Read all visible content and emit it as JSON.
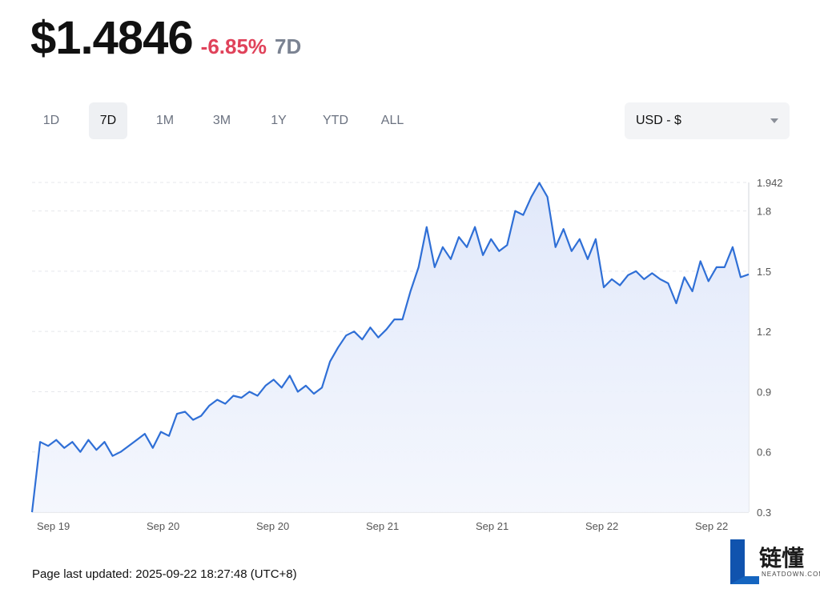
{
  "header": {
    "price": "$1.4846",
    "change": "-6.85%",
    "period": "7D"
  },
  "range_tabs": [
    {
      "label": "1D",
      "active": false
    },
    {
      "label": "7D",
      "active": true
    },
    {
      "label": "1M",
      "active": false
    },
    {
      "label": "3M",
      "active": false
    },
    {
      "label": "1Y",
      "active": false
    },
    {
      "label": "YTD",
      "active": false
    },
    {
      "label": "ALL",
      "active": false
    }
  ],
  "currency": {
    "selected": "USD - $"
  },
  "footer": {
    "updated": "Page last updated: 2025-09-22 18:27:48 (UTC+8)"
  },
  "watermark_logo": {
    "text": "链懂",
    "sub": "NEATDOWN.COM"
  },
  "colors": {
    "line": "#2f6fd6",
    "fill": "#e9effc",
    "negative": "#e0425a"
  },
  "chart_data": {
    "type": "area",
    "title": "",
    "xlabel": "",
    "ylabel": "",
    "ylim": [
      0.3,
      1.942
    ],
    "y_ticks": [
      "1.942",
      "1.8",
      "1.5",
      "1.2",
      "0.9",
      "0.6",
      "0.3"
    ],
    "y_tick_values": [
      1.942,
      1.8,
      1.5,
      1.2,
      0.9,
      0.6,
      0.3
    ],
    "x_tick_labels": [
      "Sep 19",
      "Sep 20",
      "Sep 20",
      "Sep 21",
      "Sep 21",
      "Sep 22",
      "Sep 22"
    ],
    "grid": true,
    "series": [
      {
        "values": [
          0.3,
          0.65,
          0.63,
          0.66,
          0.62,
          0.65,
          0.6,
          0.66,
          0.61,
          0.65,
          0.58,
          0.6,
          0.63,
          0.66,
          0.69,
          0.62,
          0.7,
          0.68,
          0.79,
          0.8,
          0.76,
          0.78,
          0.83,
          0.86,
          0.84,
          0.88,
          0.87,
          0.9,
          0.88,
          0.93,
          0.96,
          0.92,
          0.98,
          0.9,
          0.93,
          0.89,
          0.92,
          1.05,
          1.12,
          1.18,
          1.2,
          1.16,
          1.22,
          1.17,
          1.21,
          1.26,
          1.26,
          1.4,
          1.52,
          1.72,
          1.52,
          1.62,
          1.56,
          1.67,
          1.62,
          1.72,
          1.58,
          1.66,
          1.6,
          1.63,
          1.8,
          1.78,
          1.87,
          1.94,
          1.87,
          1.62,
          1.71,
          1.6,
          1.66,
          1.56,
          1.66,
          1.42,
          1.46,
          1.43,
          1.48,
          1.5,
          1.46,
          1.49,
          1.46,
          1.44,
          1.34,
          1.47,
          1.4,
          1.55,
          1.45,
          1.52,
          1.52,
          1.62,
          1.47,
          1.4846
        ]
      }
    ]
  }
}
